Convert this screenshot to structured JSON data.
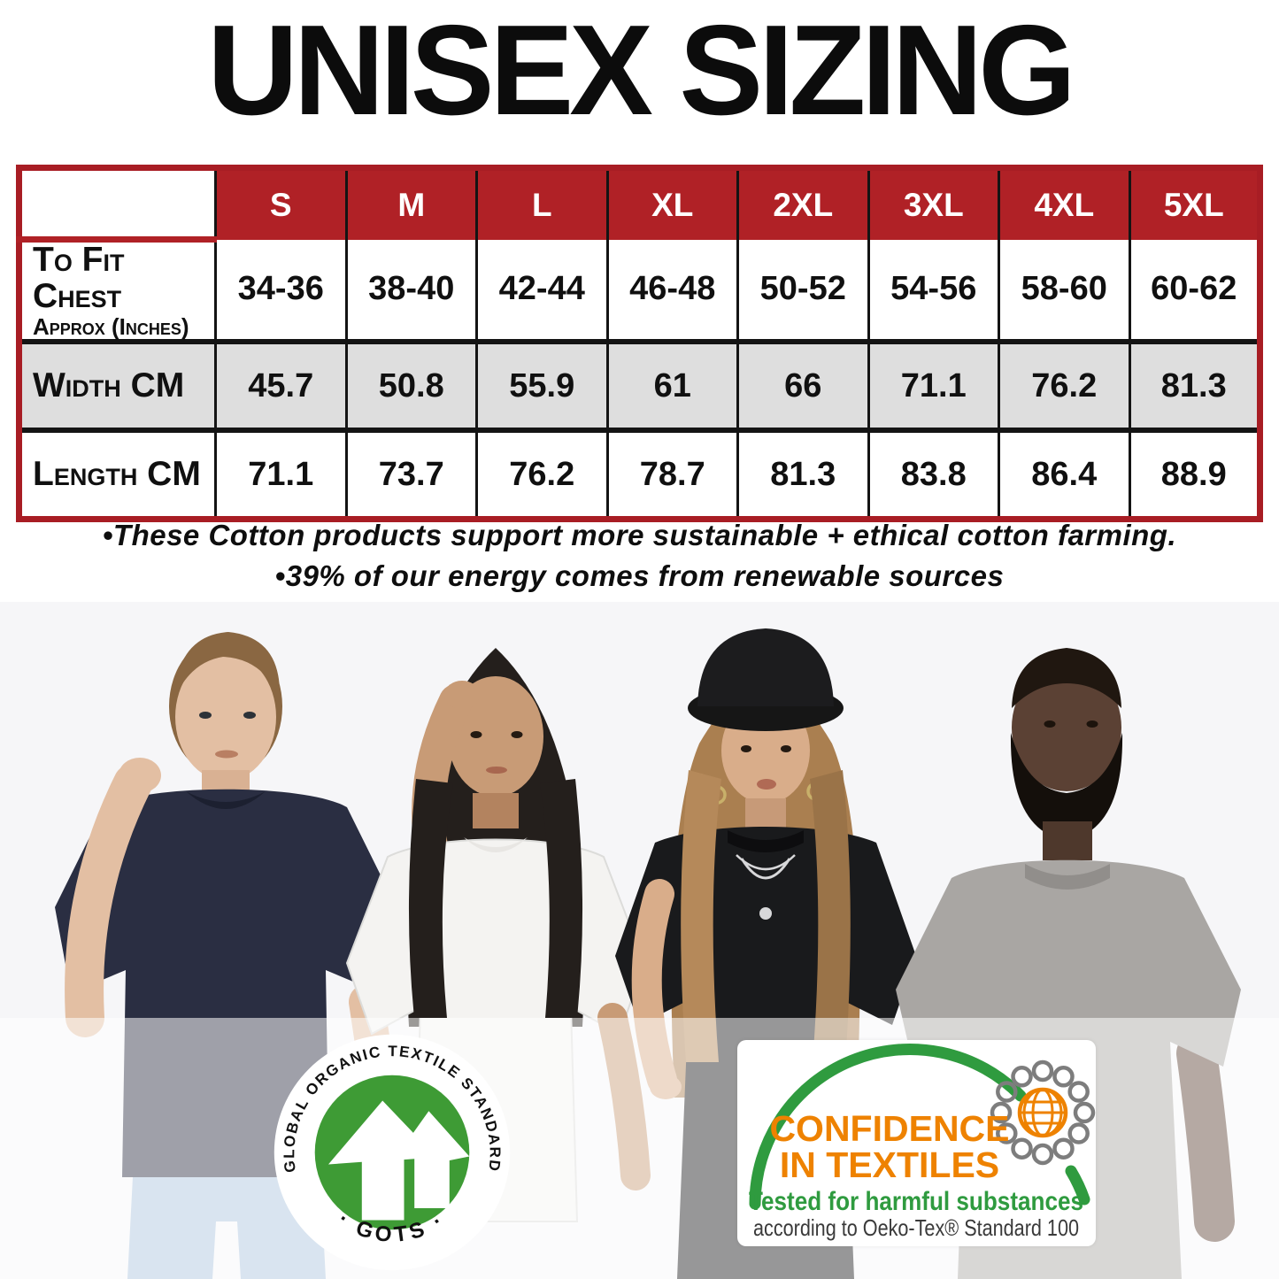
{
  "title": "UNISEX SIZING",
  "size_table": {
    "columns": [
      "S",
      "M",
      "L",
      "XL",
      "2XL",
      "3XL",
      "4XL",
      "5XL"
    ],
    "rows": [
      {
        "label": "To Fit Chest",
        "sublabel": "Approx (Inches)",
        "values": [
          "34-36",
          "38-40",
          "42-44",
          "46-48",
          "50-52",
          "54-56",
          "58-60",
          "60-62"
        ]
      },
      {
        "label": "Width CM",
        "sublabel": "",
        "values": [
          "45.7",
          "50.8",
          "55.9",
          "61",
          "66",
          "71.1",
          "76.2",
          "81.3"
        ]
      },
      {
        "label": "Length CM",
        "sublabel": "",
        "values": [
          "71.1",
          "73.7",
          "76.2",
          "78.7",
          "81.3",
          "83.8",
          "86.4",
          "88.9"
        ]
      }
    ],
    "colors": {
      "header_bg": "#b02126",
      "header_text": "#ffffff",
      "alt_row_bg": "#dedede",
      "grid_line": "#141414",
      "outer_border": "#a81d24"
    }
  },
  "bullets": [
    "•These Cotton products support more sustainable + ethical cotton farming.",
    "•39% of our energy comes from renewable sources"
  ],
  "models": [
    {
      "description": "man wearing navy t-shirt",
      "shirt_color": "#2a2e42",
      "skin_color": "#e3bfa3",
      "hair_color": "#8a6742",
      "jeans_color": "#aac4dd"
    },
    {
      "description": "woman wearing white t-shirt",
      "shirt_color": "#f4f3f1",
      "skin_color": "#c89b76",
      "hair_color": "#241f1c"
    },
    {
      "description": "woman wearing black t-shirt and bucket hat",
      "shirt_color": "#191a1c",
      "skin_color": "#d9ad8a",
      "hair_color": "#aa7f50",
      "hat_color": "#161616"
    },
    {
      "description": "man wearing heather grey t-shirt",
      "shirt_color": "#a9a6a3",
      "skin_color": "#5b4134",
      "beard_color": "#140f0b"
    }
  ],
  "logos": {
    "gots": {
      "arc_text": "GLOBAL ORGANIC TEXTILE STANDARD",
      "bottom_text": "· GOTS ·",
      "green": "#3e9b35",
      "text_color": "#111111"
    },
    "oeko_tex": {
      "line1": "CONFIDENCE",
      "line2": "IN TEXTILES",
      "line3": "Tested for harmful substances",
      "line4": "according to Oeko-Tex® Standard 100",
      "orange": "#ee8200",
      "green": "#2f9b3f",
      "dark": "#3a3a3a",
      "loop_gray": "#7d7d7d"
    }
  }
}
